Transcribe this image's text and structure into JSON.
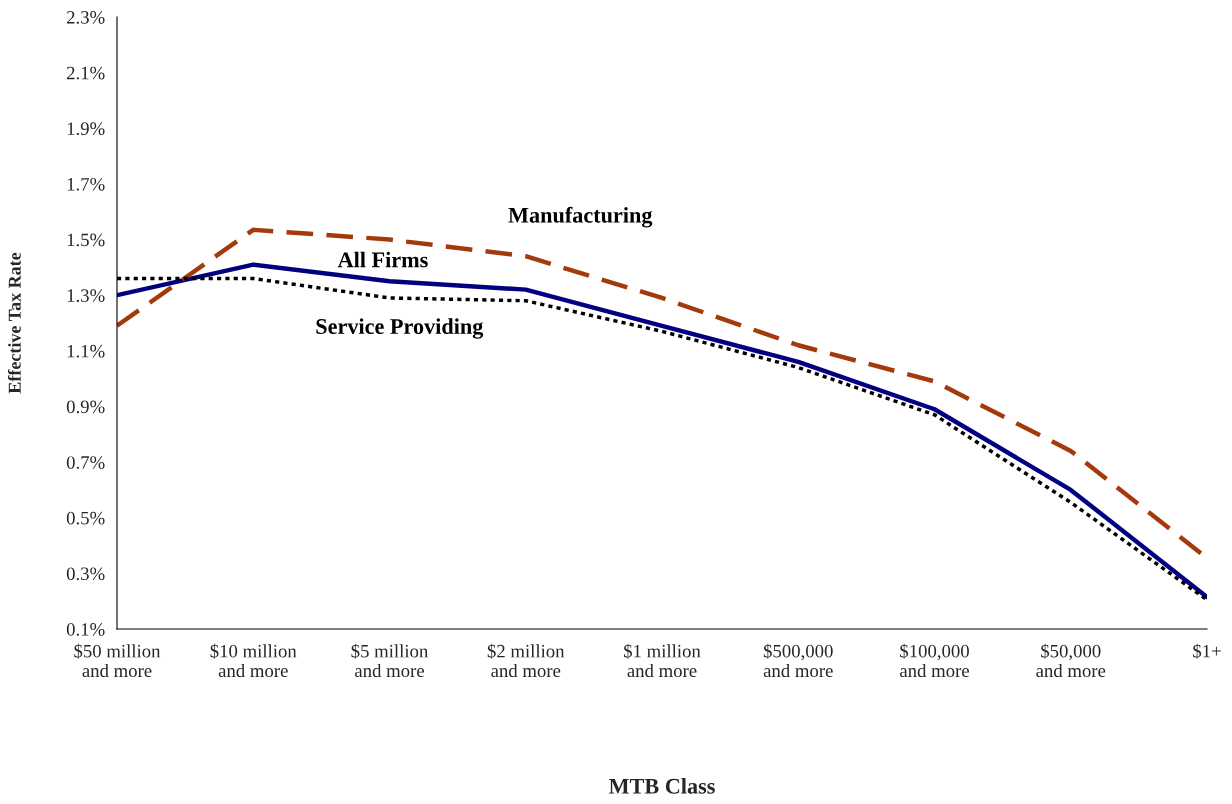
{
  "chart_data": {
    "type": "line",
    "xlabel": "MTB Class",
    "ylabel": "Effective Tax Rate",
    "categories": [
      "$50 million\nand more",
      "$10 million\nand more",
      "$5 million\nand more",
      "$2 million\nand more",
      "$1 million\nand more",
      "$500,000\nand more",
      "$100,000\nand more",
      "$50,000\nand more",
      "$1+"
    ],
    "series": [
      {
        "name": "All Firms",
        "color": "#000080",
        "line_style": "solid",
        "values": [
          1.3,
          1.41,
          1.35,
          1.32,
          1.19,
          1.06,
          0.89,
          0.6,
          0.215
        ]
      },
      {
        "name": "Manufacturing",
        "color": "#a33a0c",
        "line_style": "dashed",
        "values": [
          1.19,
          1.535,
          1.5,
          1.44,
          1.29,
          1.12,
          0.99,
          0.74,
          0.355
        ]
      },
      {
        "name": "Service Providing",
        "color": "#000000",
        "line_style": "dotted",
        "values": [
          1.36,
          1.36,
          1.29,
          1.28,
          1.17,
          1.04,
          0.87,
          0.555,
          0.205
        ]
      }
    ],
    "ylim": [
      0.1,
      2.3
    ],
    "yticks": [
      {
        "value": 0.1,
        "label": "0.1%"
      },
      {
        "value": 0.3,
        "label": "0.3%"
      },
      {
        "value": 0.5,
        "label": "0.5%"
      },
      {
        "value": 0.7,
        "label": "0.7%"
      },
      {
        "value": 0.9,
        "label": "0.9%"
      },
      {
        "value": 1.1,
        "label": "1.1%"
      },
      {
        "value": 1.3,
        "label": "1.3%"
      },
      {
        "value": 1.5,
        "label": "1.5%"
      },
      {
        "value": 1.7,
        "label": "1.7%"
      },
      {
        "value": 1.9,
        "label": "1.9%"
      },
      {
        "value": 2.1,
        "label": "2.1%"
      },
      {
        "value": 2.3,
        "label": "2.3%"
      }
    ],
    "grid": false,
    "legend": false,
    "marker": "none"
  }
}
